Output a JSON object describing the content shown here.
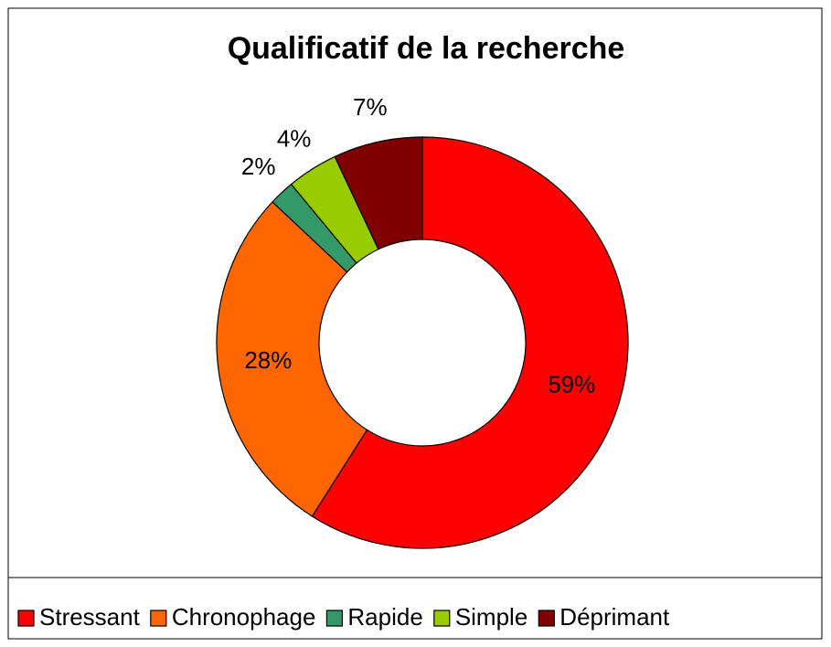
{
  "chart_data": {
    "type": "donut",
    "title": "Qualificatif de la recherche",
    "categories": [
      "Stressant",
      "Chronophage",
      "Rapide",
      "Simple",
      "Déprimant"
    ],
    "values": [
      59,
      28,
      2,
      4,
      7
    ],
    "value_labels": [
      "59%",
      "28%",
      "2%",
      "4%",
      "7%"
    ],
    "colors": [
      "#ff0000",
      "#ff6600",
      "#339966",
      "#99cc00",
      "#800000"
    ],
    "legend": "bottom"
  }
}
